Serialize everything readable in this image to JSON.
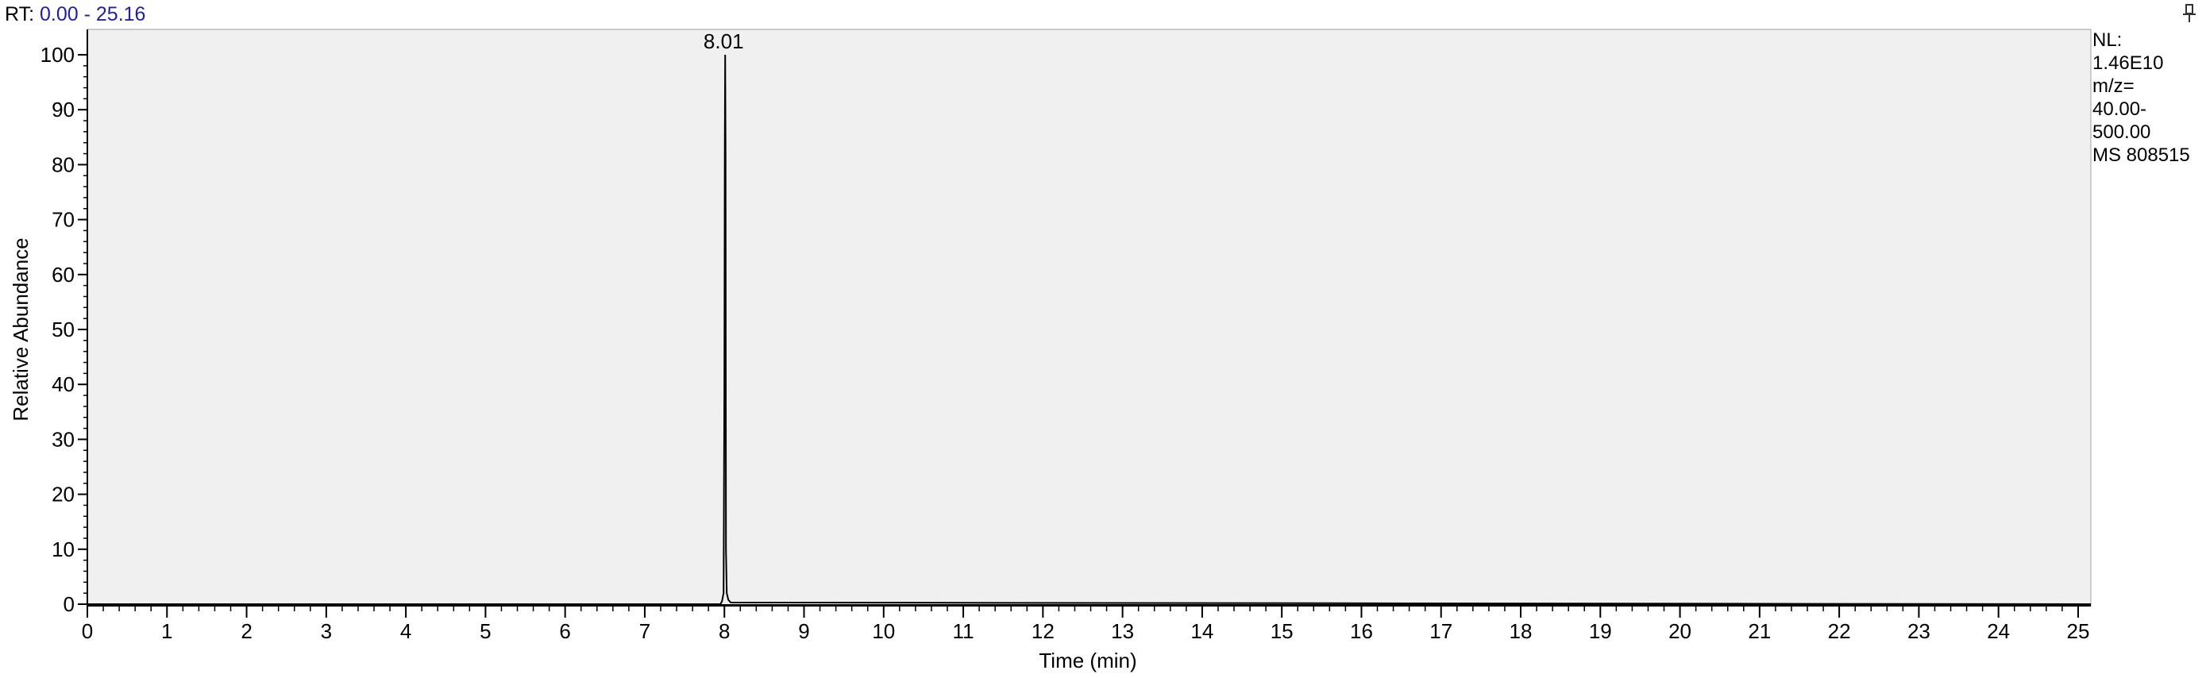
{
  "header": {
    "rt_prefix": "RT:",
    "rt_range": "0.00 - 25.16"
  },
  "info": {
    "nl_label": "NL:",
    "nl_value": "1.46E10",
    "mz_label": "m/z=",
    "mz_start": "40.00-",
    "mz_end": "500.00",
    "scan": "MS 808515"
  },
  "icons": {
    "pin": "pin-icon"
  },
  "colors": {
    "plot_background": "#f0f0f0",
    "trace": "#000000",
    "rt_range_text": "#1f1fa8"
  },
  "chart_data": {
    "type": "line",
    "title": "",
    "xlabel": "Time (min)",
    "ylabel": "Relative Abundance",
    "xlim": [
      0,
      25.16
    ],
    "ylim": [
      0,
      100
    ],
    "x_ticks": [
      0,
      1,
      2,
      3,
      4,
      5,
      6,
      7,
      8,
      9,
      10,
      11,
      12,
      13,
      14,
      15,
      16,
      17,
      18,
      19,
      20,
      21,
      22,
      23,
      24,
      25
    ],
    "y_ticks": [
      0,
      10,
      20,
      30,
      40,
      50,
      60,
      70,
      80,
      90,
      100
    ],
    "grid": false,
    "series": [
      {
        "x": [
          0,
          1.6,
          7.95,
          7.97,
          7.99,
          8.0,
          8.005,
          8.01,
          8.015,
          8.02,
          8.03,
          8.05,
          8.08,
          25.16
        ],
        "y": [
          0,
          0,
          0,
          0.5,
          2,
          40,
          82,
          100,
          82,
          10,
          2,
          0.8,
          0.3,
          0
        ]
      }
    ],
    "annotations": [
      {
        "x": 8.01,
        "y": 100,
        "text": "8.01"
      }
    ]
  }
}
